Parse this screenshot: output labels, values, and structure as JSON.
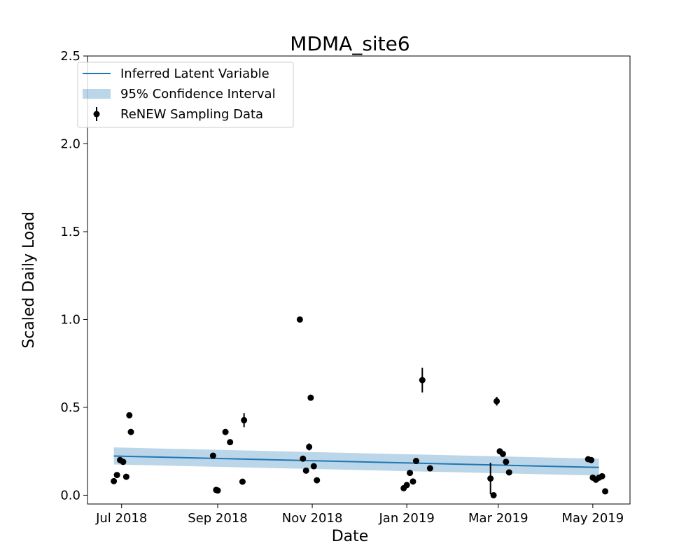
{
  "chart_data": {
    "type": "scatter",
    "title": "MDMA_site6",
    "xlabel": "Date",
    "ylabel": "Scaled Daily Load",
    "xlim": [
      "2018-06-09",
      "2019-05-25"
    ],
    "ylim": [
      -0.05,
      2.5
    ],
    "x_tick_labels": [
      {
        "date": "2018-07-01",
        "label": "Jul 2018"
      },
      {
        "date": "2018-09-01",
        "label": "Sep 2018"
      },
      {
        "date": "2018-11-01",
        "label": "Nov 2018"
      },
      {
        "date": "2019-01-01",
        "label": "Jan 2019"
      },
      {
        "date": "2019-03-01",
        "label": "Mar 2019"
      },
      {
        "date": "2019-05-01",
        "label": "May 2019"
      }
    ],
    "y_tick_labels": [
      {
        "value": 0.0,
        "label": "0.0"
      },
      {
        "value": 0.5,
        "label": "0.5"
      },
      {
        "value": 1.0,
        "label": "1.0"
      },
      {
        "value": 1.5,
        "label": "1.5"
      },
      {
        "value": 2.0,
        "label": "2.0"
      },
      {
        "value": 2.5,
        "label": "2.5"
      }
    ],
    "grid": false,
    "legend_position": "top-left",
    "series": [
      {
        "name": "Inferred Latent Variable",
        "kind": "line",
        "color": "#1f77b4",
        "x": [
          "2018-06-26",
          "2019-05-05"
        ],
        "y": [
          0.223,
          0.158
        ]
      },
      {
        "name": "95% Confidence Interval",
        "kind": "band",
        "color": "#1f77b4",
        "opacity": 0.3,
        "x": [
          "2018-06-26",
          "2019-05-05"
        ],
        "lower": [
          0.175,
          0.112
        ],
        "upper": [
          0.272,
          0.208
        ]
      },
      {
        "name": "ReNEW Sampling Data",
        "kind": "errorbar",
        "color": "#000000",
        "points": [
          {
            "x": "2018-06-26",
            "y": 0.08,
            "err": 0.01
          },
          {
            "x": "2018-06-28",
            "y": 0.115,
            "err": 0.01
          },
          {
            "x": "2018-06-30",
            "y": 0.2,
            "err": 0.01
          },
          {
            "x": "2018-07-02",
            "y": 0.19,
            "err": 0.01
          },
          {
            "x": "2018-07-04",
            "y": 0.105,
            "err": 0.01
          },
          {
            "x": "2018-07-06",
            "y": 0.455,
            "err": 0.01
          },
          {
            "x": "2018-07-07",
            "y": 0.36,
            "err": 0.01
          },
          {
            "x": "2018-08-29",
            "y": 0.225,
            "err": 0.01
          },
          {
            "x": "2018-08-31",
            "y": 0.03,
            "err": 0.01
          },
          {
            "x": "2018-09-01",
            "y": 0.027,
            "err": 0.01
          },
          {
            "x": "2018-09-06",
            "y": 0.36,
            "err": 0.01
          },
          {
            "x": "2018-09-09",
            "y": 0.302,
            "err": 0.01
          },
          {
            "x": "2018-09-17",
            "y": 0.077,
            "err": 0.01
          },
          {
            "x": "2018-09-18",
            "y": 0.427,
            "err": 0.04
          },
          {
            "x": "2018-10-24",
            "y": 1.0,
            "err": 0.01
          },
          {
            "x": "2018-10-26",
            "y": 0.208,
            "err": 0.01
          },
          {
            "x": "2018-10-28",
            "y": 0.14,
            "err": 0.015
          },
          {
            "x": "2018-10-30",
            "y": 0.275,
            "err": 0.02
          },
          {
            "x": "2018-10-31",
            "y": 0.555,
            "err": 0.01
          },
          {
            "x": "2018-11-02",
            "y": 0.165,
            "err": 0.01
          },
          {
            "x": "2018-11-04",
            "y": 0.085,
            "err": 0.01
          },
          {
            "x": "2018-12-30",
            "y": 0.04,
            "err": 0.01
          },
          {
            "x": "2019-01-01",
            "y": 0.058,
            "err": 0.01
          },
          {
            "x": "2019-01-03",
            "y": 0.127,
            "err": 0.01
          },
          {
            "x": "2019-01-05",
            "y": 0.078,
            "err": 0.01
          },
          {
            "x": "2019-01-07",
            "y": 0.195,
            "err": 0.01
          },
          {
            "x": "2019-01-11",
            "y": 0.655,
            "err": 0.07
          },
          {
            "x": "2019-01-16",
            "y": 0.153,
            "err": 0.01
          },
          {
            "x": "2019-02-24",
            "y": 0.095,
            "err": 0.09
          },
          {
            "x": "2019-02-26",
            "y": 0.0,
            "err": 0.01
          },
          {
            "x": "2019-02-28",
            "y": 0.535,
            "err": 0.025
          },
          {
            "x": "2019-03-02",
            "y": 0.25,
            "err": 0.01
          },
          {
            "x": "2019-03-04",
            "y": 0.235,
            "err": 0.01
          },
          {
            "x": "2019-03-06",
            "y": 0.19,
            "err": 0.01
          },
          {
            "x": "2019-03-08",
            "y": 0.13,
            "err": 0.01
          },
          {
            "x": "2019-04-28",
            "y": 0.205,
            "err": 0.01
          },
          {
            "x": "2019-04-30",
            "y": 0.2,
            "err": 0.01
          },
          {
            "x": "2019-05-01",
            "y": 0.1,
            "err": 0.01
          },
          {
            "x": "2019-05-03",
            "y": 0.088,
            "err": 0.01
          },
          {
            "x": "2019-05-05",
            "y": 0.1,
            "err": 0.01
          },
          {
            "x": "2019-05-07",
            "y": 0.108,
            "err": 0.01
          },
          {
            "x": "2019-05-09",
            "y": 0.022,
            "err": 0.01
          }
        ]
      }
    ]
  }
}
